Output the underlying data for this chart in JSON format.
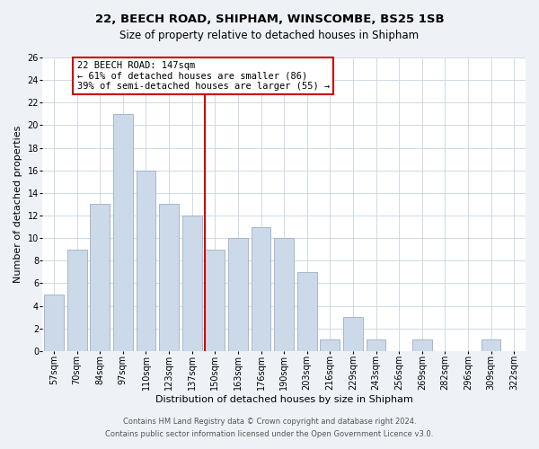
{
  "title": "22, BEECH ROAD, SHIPHAM, WINSCOMBE, BS25 1SB",
  "subtitle": "Size of property relative to detached houses in Shipham",
  "xlabel": "Distribution of detached houses by size in Shipham",
  "ylabel": "Number of detached properties",
  "bar_labels": [
    "57sqm",
    "70sqm",
    "84sqm",
    "97sqm",
    "110sqm",
    "123sqm",
    "137sqm",
    "150sqm",
    "163sqm",
    "176sqm",
    "190sqm",
    "203sqm",
    "216sqm",
    "229sqm",
    "243sqm",
    "256sqm",
    "269sqm",
    "282sqm",
    "296sqm",
    "309sqm",
    "322sqm"
  ],
  "bar_values": [
    5,
    9,
    13,
    21,
    16,
    13,
    12,
    9,
    10,
    11,
    10,
    7,
    1,
    3,
    1,
    0,
    1,
    0,
    0,
    1,
    0
  ],
  "bar_color": "#ccd9e8",
  "bar_edge_color": "#9ab0c8",
  "marker_index": 7,
  "marker_color": "#cc0000",
  "ylim": [
    0,
    26
  ],
  "yticks": [
    0,
    2,
    4,
    6,
    8,
    10,
    12,
    14,
    16,
    18,
    20,
    22,
    24,
    26
  ],
  "annotation_title": "22 BEECH ROAD: 147sqm",
  "annotation_line1": "← 61% of detached houses are smaller (86)",
  "annotation_line2": "39% of semi-detached houses are larger (55) →",
  "footer1": "Contains HM Land Registry data © Crown copyright and database right 2024.",
  "footer2": "Contains public sector information licensed under the Open Government Licence v3.0.",
  "background_color": "#eef2f7",
  "plot_bg_color": "#ffffff",
  "grid_color": "#c8d4e0",
  "title_fontsize": 9.5,
  "subtitle_fontsize": 8.5,
  "axis_label_fontsize": 8,
  "tick_fontsize": 7,
  "annotation_fontsize": 7.5,
  "footer_fontsize": 6
}
